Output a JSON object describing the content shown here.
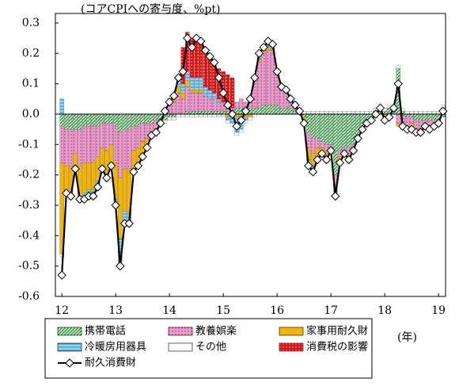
{
  "chart_data": {
    "type": "stacked-bar-line",
    "subtitle": "(コアCPIへの寄与度、%pt)",
    "x_unit": "(年)",
    "x": [
      12,
      12.083,
      12.167,
      12.25,
      12.333,
      12.417,
      12.5,
      12.583,
      12.667,
      12.75,
      12.833,
      12.917,
      13,
      13.083,
      13.167,
      13.25,
      13.333,
      13.417,
      13.5,
      13.583,
      13.667,
      13.75,
      13.833,
      13.917,
      14,
      14.083,
      14.167,
      14.25,
      14.333,
      14.417,
      14.5,
      14.583,
      14.667,
      14.75,
      14.833,
      14.917,
      15,
      15.083,
      15.167,
      15.25,
      15.333,
      15.417,
      15.5,
      15.583,
      15.667,
      15.75,
      15.833,
      15.917,
      16,
      16.083,
      16.167,
      16.25,
      16.333,
      16.417,
      16.5,
      16.583,
      16.667,
      16.75,
      16.833,
      16.917,
      17,
      17.083,
      17.167,
      17.25,
      17.333,
      17.417,
      17.5,
      17.583,
      17.667,
      17.75,
      17.833,
      17.917,
      18,
      18.083,
      18.167,
      18.25,
      18.333,
      18.417,
      18.5,
      18.583,
      18.667,
      18.75,
      18.833,
      18.917,
      19,
      19.083
    ],
    "xlim": [
      11.88,
      19.13
    ],
    "xticks": [
      12,
      13,
      14,
      15,
      16,
      17,
      18,
      19
    ],
    "ylim": [
      -0.6,
      0.3
    ],
    "yticks": [
      0.3,
      0.2,
      0.1,
      {
        "value": 0,
        "label": "0.0"
      },
      -0.1,
      -0.2,
      -0.3,
      -0.4,
      -0.5,
      -0.6
    ],
    "series": [
      {
        "name": "携帯電話",
        "color": "#2e9b3c",
        "values": [
          -0.04,
          -0.05,
          -0.05,
          -0.05,
          -0.05,
          -0.04,
          -0.04,
          -0.04,
          -0.04,
          -0.03,
          -0.03,
          -0.03,
          -0.04,
          -0.06,
          -0.05,
          -0.05,
          -0.04,
          -0.04,
          -0.03,
          -0.03,
          -0.03,
          -0.02,
          -0.02,
          -0.02,
          -0.01,
          -0.01,
          0,
          0,
          0.01,
          0.01,
          0.01,
          0.01,
          0.01,
          0.01,
          0.01,
          0.01,
          0.01,
          0.01,
          0.01,
          0.02,
          0.02,
          0.02,
          0.02,
          0.02,
          0.02,
          0.03,
          0.03,
          0.03,
          0.03,
          0.02,
          0.02,
          0.02,
          0.01,
          0.01,
          -0.01,
          -0.06,
          -0.08,
          -0.08,
          -0.09,
          -0.1,
          -0.1,
          -0.2,
          -0.12,
          -0.11,
          -0.11,
          -0.1,
          -0.07,
          -0.05,
          -0.03,
          -0.02,
          -0.01,
          0.01,
          0.01,
          0.02,
          0.02,
          0.15,
          0.01,
          -0.01,
          -0.01,
          -0.02,
          -0.02,
          -0.02,
          -0.02,
          -0.02,
          -0.02,
          -0.01
        ]
      },
      {
        "name": "教養娯楽",
        "color": "#f09ad0",
        "values": [
          -0.12,
          -0.12,
          -0.12,
          -0.08,
          -0.12,
          -0.12,
          -0.12,
          -0.12,
          -0.1,
          -0.08,
          -0.09,
          -0.07,
          -0.12,
          -0.15,
          -0.13,
          -0.13,
          -0.08,
          -0.07,
          -0.06,
          -0.05,
          -0.03,
          -0.03,
          -0.01,
          0.01,
          0.03,
          0.04,
          0.07,
          0.05,
          0.08,
          0.06,
          0.06,
          0.06,
          0.05,
          0.04,
          0.04,
          0.03,
          0.03,
          0.02,
          0.01,
          0.02,
          0.03,
          0.02,
          0.04,
          0.09,
          0.15,
          0.17,
          0.18,
          0.17,
          0.1,
          0.06,
          0.06,
          0.03,
          0.02,
          0.01,
          0,
          -0.05,
          -0.05,
          -0.03,
          -0.02,
          -0.02,
          -0.01,
          -0.03,
          -0.02,
          -0.01,
          -0.02,
          -0.01,
          -0.01,
          0,
          0,
          0,
          0.01,
          0.01,
          -0.02,
          -0.01,
          0,
          -0.03,
          -0.03,
          -0.03,
          -0.02,
          -0.03,
          -0.03,
          -0.02,
          -0.02,
          -0.02,
          -0.01,
          0.01
        ]
      },
      {
        "name": "家事用耐久財",
        "color": "#f5b400",
        "values": [
          -0.3,
          -0.08,
          -0.09,
          -0.04,
          -0.1,
          -0.1,
          -0.09,
          -0.09,
          -0.08,
          -0.06,
          -0.08,
          -0.06,
          -0.12,
          -0.2,
          -0.14,
          -0.15,
          -0.06,
          -0.05,
          -0.04,
          -0.03,
          -0.01,
          -0.01,
          0,
          0.01,
          0.01,
          0.01,
          0.02,
          0.02,
          0.02,
          0.01,
          0.01,
          0.01,
          0,
          0,
          0,
          0,
          0,
          -0.01,
          -0.01,
          -0.01,
          -0.02,
          -0.01,
          -0.01,
          0,
          0.01,
          0.01,
          0.01,
          0.01,
          0,
          0,
          0,
          0,
          0,
          0,
          -0.01,
          -0.04,
          -0.04,
          -0.03,
          -0.02,
          -0.03,
          -0.01,
          -0.03,
          -0.02,
          -0.01,
          -0.02,
          -0.01,
          0,
          0,
          0,
          0,
          0,
          0,
          0,
          0,
          0,
          -0.01,
          -0.01,
          -0.01,
          -0.01,
          -0.01,
          -0.01,
          0,
          -0.01,
          0,
          0,
          0
        ]
      },
      {
        "name": "冷暖房用器具",
        "color": "#8fd8f0",
        "values": [
          0.05,
          -0.01,
          -0.01,
          -0.01,
          -0.01,
          -0.02,
          -0.02,
          -0.02,
          -0.02,
          -0.01,
          -0.01,
          -0.01,
          -0.02,
          -0.09,
          -0.04,
          -0.03,
          -0.01,
          -0.01,
          -0.01,
          0,
          0,
          0,
          0,
          0,
          0.01,
          0.01,
          0.02,
          0.03,
          0.03,
          0.04,
          0.04,
          0.04,
          0.03,
          0.03,
          0.02,
          0.01,
          0,
          -0.01,
          -0.02,
          -0.05,
          -0.03,
          -0.01,
          0,
          0.01,
          0.01,
          0.01,
          0.01,
          0.01,
          0.01,
          0.01,
          0,
          0,
          0,
          0,
          0,
          -0.01,
          -0.01,
          -0.01,
          -0.01,
          -0.01,
          -0.01,
          -0.01,
          -0.01,
          -0.01,
          -0.01,
          -0.01,
          -0.01,
          -0.01,
          -0.01,
          0,
          0,
          0,
          0,
          0,
          0,
          0,
          -0.01,
          -0.01,
          -0.01,
          -0.01,
          -0.01,
          -0.01,
          -0.01,
          -0.01,
          -0.01,
          0.01
        ]
      },
      {
        "name": "その他",
        "color": "#ffffff",
        "values": [
          -0.01,
          -0.01,
          -0.01,
          -0.01,
          -0.01,
          -0.01,
          -0.01,
          -0.01,
          -0.01,
          -0.01,
          -0.01,
          -0.01,
          -0.01,
          -0.01,
          -0.01,
          -0.01,
          -0.01,
          -0.01,
          -0.01,
          -0.01,
          -0.01,
          -0.01,
          -0.01,
          -0.01,
          -0.01,
          -0.01,
          -0.01,
          -0.01,
          -0.01,
          -0.01,
          -0.01,
          -0.01,
          -0.01,
          -0.01,
          -0.01,
          -0.01,
          -0.01,
          -0.01,
          -0.01,
          -0.01,
          -0.01,
          -0.01,
          -0.01,
          -0.01,
          0.01,
          0.01,
          0.01,
          0.01,
          0.01,
          0.01,
          0.01,
          0.01,
          0.01,
          0.01,
          0.01,
          0.01,
          0.01,
          0.01,
          0.01,
          0.01,
          0.01,
          0.01,
          0.01,
          0.01,
          0.01,
          0.01,
          0.01,
          0.01,
          0.01,
          0.01,
          0.01,
          0.01,
          0.01,
          0.01,
          0.01,
          0.01,
          0.01,
          0.01,
          0.01,
          0.01,
          0.01,
          0.01,
          0.01,
          0.01,
          0.01,
          0.01
        ]
      },
      {
        "name": "消費税の影響",
        "color": "#e01010",
        "values": [
          0,
          0,
          0,
          0,
          0,
          0,
          0,
          0,
          0,
          0,
          0,
          0,
          0,
          0,
          0,
          0,
          0,
          0,
          0,
          0,
          0,
          0,
          0,
          0,
          0,
          0,
          0,
          0.12,
          0.13,
          0.13,
          0.13,
          0.12,
          0.12,
          0.11,
          0.11,
          0.1,
          0.1,
          0.1,
          0.1,
          0,
          0,
          0,
          0,
          0,
          0,
          0,
          0,
          0,
          0,
          0,
          0,
          0,
          0,
          0,
          0,
          0,
          0,
          0,
          0,
          0,
          0,
          0,
          0,
          0,
          0,
          0,
          0,
          0,
          0,
          0,
          0,
          0,
          0,
          0,
          0,
          0,
          0,
          0,
          0,
          0,
          0,
          0,
          0,
          0,
          0,
          0
        ]
      }
    ],
    "line_series": {
      "name": "耐久消費財",
      "color": "#000000",
      "values": [
        -0.53,
        -0.26,
        -0.27,
        -0.18,
        -0.28,
        -0.28,
        -0.27,
        -0.27,
        -0.24,
        -0.18,
        -0.21,
        -0.17,
        -0.3,
        -0.5,
        -0.36,
        -0.36,
        -0.19,
        -0.17,
        -0.14,
        -0.11,
        -0.07,
        -0.06,
        -0.03,
        0.01,
        0.04,
        0.06,
        0.12,
        0.14,
        0.25,
        0.22,
        0.25,
        0.24,
        0.21,
        0.19,
        0.17,
        0.12,
        0.07,
        0.03,
        0,
        -0.04,
        -0.02,
        0.01,
        0.05,
        0.12,
        0.2,
        0.22,
        0.24,
        0.23,
        0.14,
        0.09,
        0.08,
        0.05,
        0.03,
        0.01,
        -0.03,
        -0.17,
        -0.19,
        -0.15,
        -0.13,
        -0.15,
        -0.12,
        -0.27,
        -0.16,
        -0.13,
        -0.15,
        -0.12,
        -0.08,
        -0.05,
        -0.03,
        -0.02,
        0,
        0.02,
        -0.02,
        -0.01,
        0.02,
        0.1,
        -0.04,
        -0.05,
        -0.05,
        -0.06,
        -0.06,
        -0.04,
        -0.05,
        -0.04,
        -0.03,
        0.01
      ]
    }
  }
}
